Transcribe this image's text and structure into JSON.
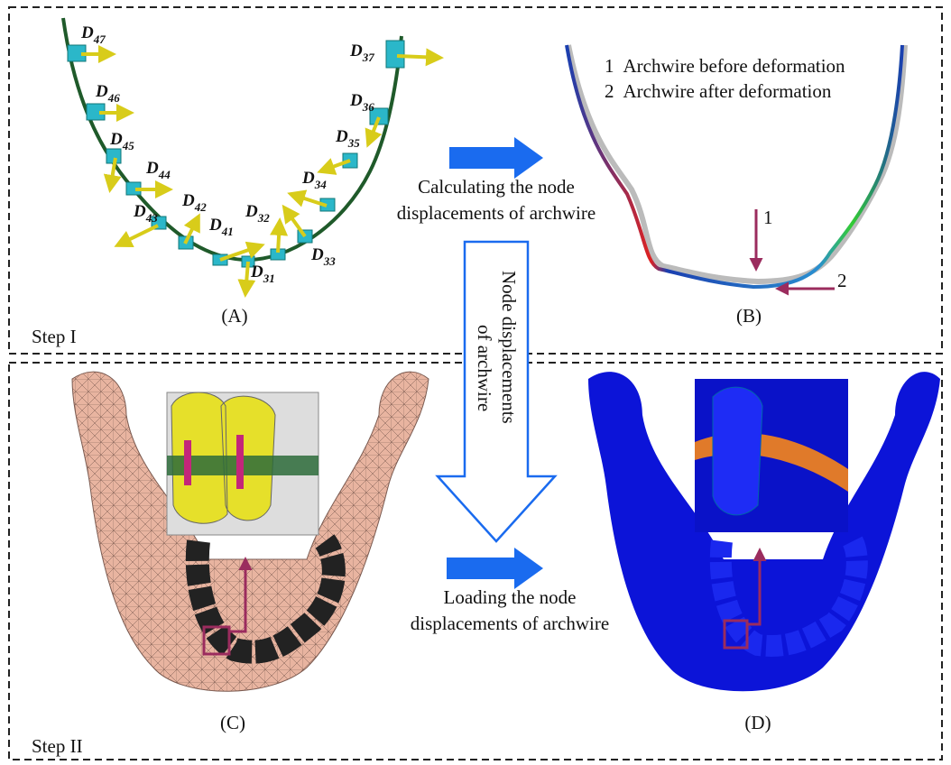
{
  "steps": [
    "Step I",
    "Step II"
  ],
  "panels": [
    "(A)",
    "(B)",
    "(C)",
    "(D)"
  ],
  "panel_a": {
    "displacements": [
      {
        "base": "D",
        "sub": "47"
      },
      {
        "base": "D",
        "sub": "46"
      },
      {
        "base": "D",
        "sub": "45"
      },
      {
        "base": "D",
        "sub": "44"
      },
      {
        "base": "D",
        "sub": "43"
      },
      {
        "base": "D",
        "sub": "42"
      },
      {
        "base": "D",
        "sub": "41"
      },
      {
        "base": "D",
        "sub": "31"
      },
      {
        "base": "D",
        "sub": "32"
      },
      {
        "base": "D",
        "sub": "33"
      },
      {
        "base": "D",
        "sub": "34"
      },
      {
        "base": "D",
        "sub": "35"
      },
      {
        "base": "D",
        "sub": "36"
      },
      {
        "base": "D",
        "sub": "37"
      }
    ]
  },
  "panel_b": {
    "legend": [
      {
        "number": "1",
        "text": "Archwire before deformation"
      },
      {
        "number": "2",
        "text": "Archwire after deformation"
      }
    ],
    "markers": [
      "1",
      "2"
    ]
  },
  "arrows": {
    "calculate": [
      "Calculating the node",
      "displacements of archwire"
    ],
    "transfer": [
      "Node displacements",
      "of archwire"
    ],
    "load": [
      "Loading the node",
      "displacements of archwire"
    ]
  }
}
